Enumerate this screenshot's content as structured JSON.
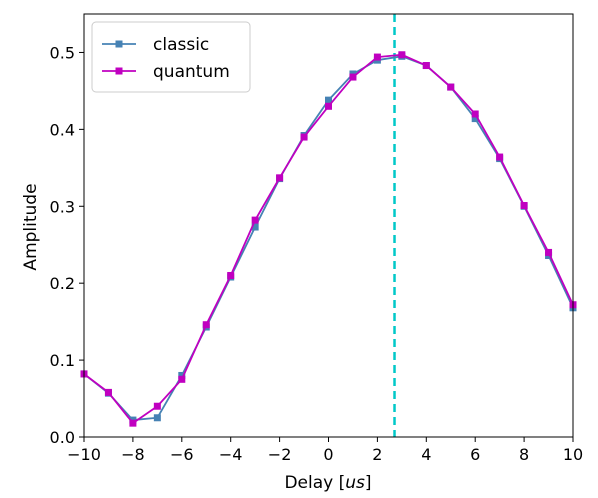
{
  "chart_data": {
    "type": "line",
    "title": "",
    "xlabel": "Delay [",
    "xlabel_italic": "us",
    "xlabel_suffix": "]",
    "ylabel": "Amplitude",
    "xlim": [
      -10,
      10
    ],
    "ylim": [
      0.0,
      0.55
    ],
    "x_ticks": [
      -10,
      -8,
      -6,
      -4,
      -2,
      0,
      2,
      4,
      6,
      8,
      10
    ],
    "x_tick_labels": [
      "−10",
      "−8",
      "−6",
      "−4",
      "−2",
      "0",
      "2",
      "4",
      "6",
      "8",
      "10"
    ],
    "y_ticks": [
      0.0,
      0.1,
      0.2,
      0.3,
      0.4,
      0.5
    ],
    "y_tick_labels": [
      "0.0",
      "0.1",
      "0.2",
      "0.3",
      "0.4",
      "0.5"
    ],
    "grid": false,
    "legend_position": "top-left",
    "x": [
      -10,
      -9,
      -8,
      -7,
      -6,
      -5,
      -4,
      -3,
      -2,
      -1,
      0,
      1,
      2,
      3,
      4,
      5,
      6,
      7,
      8,
      9,
      10
    ],
    "series": [
      {
        "name": "classic",
        "color": "#4682b4",
        "marker": "square",
        "values": [
          0.082,
          0.057,
          0.022,
          0.025,
          0.08,
          0.143,
          0.208,
          0.273,
          0.336,
          0.392,
          0.438,
          0.472,
          0.49,
          0.495,
          0.483,
          0.455,
          0.414,
          0.362,
          0.3,
          0.236,
          0.168
        ]
      },
      {
        "name": "quantum",
        "color": "#c000c0",
        "marker": "square",
        "values": [
          0.082,
          0.058,
          0.018,
          0.04,
          0.075,
          0.146,
          0.21,
          0.282,
          0.337,
          0.39,
          0.43,
          0.468,
          0.494,
          0.497,
          0.483,
          0.455,
          0.42,
          0.364,
          0.301,
          0.24,
          0.172
        ]
      }
    ],
    "vline": {
      "x": 2.7,
      "color": "#00c8c8",
      "style": "dashed"
    }
  }
}
